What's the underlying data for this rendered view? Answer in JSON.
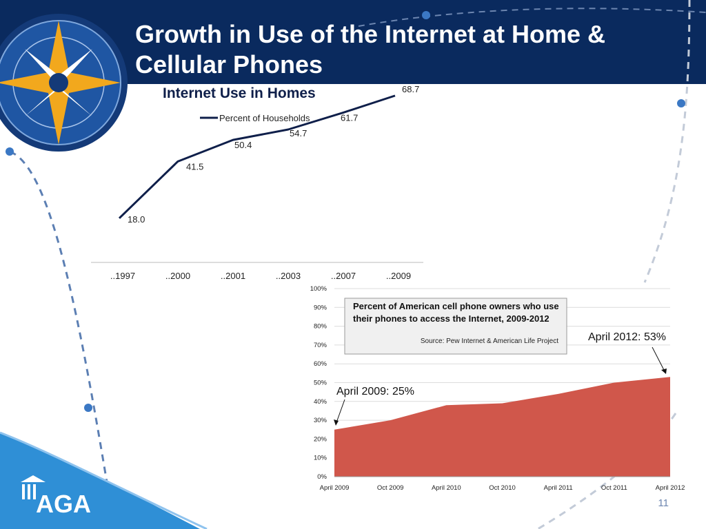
{
  "slide": {
    "title": "Growth in Use of the Internet at Home & Cellular Phones",
    "page_number": "11",
    "logo_text": "AGA"
  },
  "colors": {
    "header_navy": "#0a2a5e",
    "line_series": "#0f1f4a",
    "area_fill": "#d0574b",
    "logo_blue": "#2f8fd6"
  },
  "chart_data": [
    {
      "type": "line",
      "title": "Internet Use in Homes",
      "categories": [
        "..1997",
        "..2000",
        "..2001",
        "..2003",
        "..2007",
        "..2009"
      ],
      "series": [
        {
          "name": "Percent of Households",
          "values": [
            18.0,
            41.5,
            50.4,
            54.7,
            61.7,
            68.7
          ]
        }
      ],
      "data_labels": [
        "18.0",
        "41.5",
        "50.4",
        "54.7",
        "61.7",
        "68.7"
      ],
      "xlabel": "",
      "ylabel": "",
      "ylim": [
        0,
        100
      ],
      "grid": false,
      "legend": "top-left"
    },
    {
      "type": "area",
      "title": "Percent of American cell phone owners who use their phones to access the Internet, 2009-2012",
      "subtitle": "Source: Pew Internet & American Life Project",
      "x": [
        "April 2009",
        "Oct 2009",
        "April 2010",
        "Oct 2010",
        "April 2011",
        "Oct 2011",
        "April 2012"
      ],
      "values": [
        25,
        30,
        38,
        39,
        44,
        50,
        53
      ],
      "yticks": [
        "0%",
        "10%",
        "20%",
        "30%",
        "40%",
        "50%",
        "60%",
        "70%",
        "80%",
        "90%",
        "100%"
      ],
      "ylim": [
        0,
        100
      ],
      "grid": true,
      "annotations": [
        {
          "text": "April 2009: 25%",
          "x": "April 2009",
          "y": 25
        },
        {
          "text": "April 2012: 53%",
          "x": "April 2012",
          "y": 53
        }
      ]
    }
  ]
}
